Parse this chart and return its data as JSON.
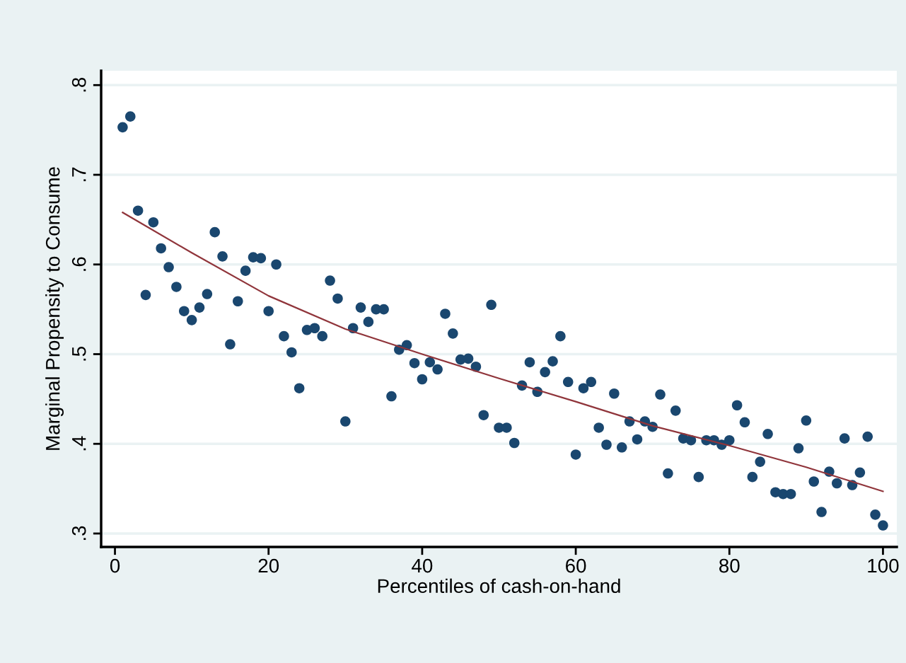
{
  "chart_data": {
    "type": "scatter",
    "xlabel": "Percentiles of cash-on-hand",
    "ylabel": "Marginal Propensity to Consume",
    "xlim": [
      -1.8,
      101.8
    ],
    "ylim": [
      0.285,
      0.816
    ],
    "xticks": [
      0,
      20,
      40,
      60,
      80,
      100
    ],
    "yticks": [
      {
        "value": 0.3,
        "label": ".3"
      },
      {
        "value": 0.4,
        "label": ".4"
      },
      {
        "value": 0.5,
        "label": ".5"
      },
      {
        "value": 0.6,
        "label": ".6"
      },
      {
        "value": 0.7,
        "label": ".7"
      },
      {
        "value": 0.8,
        "label": ".8"
      }
    ],
    "grid": "y",
    "legend": false,
    "series": [
      {
        "color": "#1a476f",
        "marker": "circle",
        "x": [
          1,
          2,
          3,
          4,
          5,
          6,
          7,
          8,
          9,
          10,
          11,
          12,
          13,
          14,
          15,
          16,
          17,
          18,
          19,
          20,
          21,
          22,
          23,
          24,
          25,
          26,
          27,
          28,
          29,
          30,
          31,
          32,
          33,
          34,
          35,
          36,
          37,
          38,
          39,
          40,
          41,
          42,
          43,
          44,
          45,
          46,
          47,
          48,
          49,
          50,
          51,
          52,
          53,
          54,
          55,
          56,
          57,
          58,
          59,
          60,
          61,
          62,
          63,
          64,
          65,
          66,
          67,
          68,
          69,
          70,
          71,
          72,
          73,
          74,
          75,
          76,
          77,
          78,
          79,
          80,
          81,
          82,
          83,
          84,
          85,
          86,
          87,
          88,
          89,
          90,
          91,
          92,
          93,
          94,
          95,
          96,
          97,
          98,
          99,
          100
        ],
        "values": [
          0.753,
          0.765,
          0.66,
          0.566,
          0.647,
          0.618,
          0.597,
          0.575,
          0.548,
          0.538,
          0.552,
          0.567,
          0.636,
          0.609,
          0.511,
          0.559,
          0.593,
          0.608,
          0.607,
          0.548,
          0.6,
          0.52,
          0.502,
          0.462,
          0.527,
          0.529,
          0.52,
          0.582,
          0.562,
          0.425,
          0.529,
          0.552,
          0.536,
          0.55,
          0.55,
          0.453,
          0.505,
          0.51,
          0.49,
          0.472,
          0.491,
          0.483,
          0.545,
          0.523,
          0.494,
          0.495,
          0.486,
          0.432,
          0.555,
          0.418,
          0.418,
          0.401,
          0.465,
          0.491,
          0.458,
          0.48,
          0.492,
          0.52,
          0.469,
          0.388,
          0.462,
          0.469,
          0.418,
          0.399,
          0.456,
          0.396,
          0.425,
          0.405,
          0.425,
          0.419,
          0.455,
          0.367,
          0.437,
          0.406,
          0.404,
          0.363,
          0.404,
          0.404,
          0.399,
          0.404,
          0.443,
          0.424,
          0.363,
          0.38,
          0.411,
          0.346,
          0.344,
          0.344,
          0.395,
          0.426,
          0.358,
          0.324,
          0.369,
          0.356,
          0.406,
          0.354,
          0.368,
          0.408,
          0.321,
          0.309
        ]
      },
      {
        "type": "line",
        "color": "#90353b",
        "marker": "none",
        "line_style": "solid",
        "x": [
          1,
          10,
          20,
          30,
          40,
          50,
          60,
          70,
          80,
          90,
          100
        ],
        "values": [
          0.658,
          0.613,
          0.565,
          0.528,
          0.5,
          0.473,
          0.447,
          0.42,
          0.398,
          0.374,
          0.347
        ]
      }
    ]
  }
}
